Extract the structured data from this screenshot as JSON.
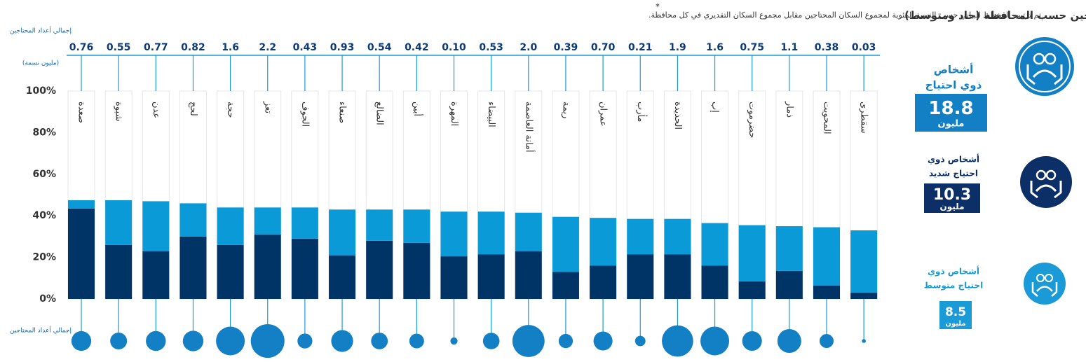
{
  "chart_data": {
    "type": "stacked_bar",
    "title": "أعداد المحتاجين حسب المحافظة (حاد ومتوسط)",
    "title_note": "*",
    "subtitle": "تم ترتيب المخطط البياني حسب النسبة المئوية لمجموع السكان المحتاجين مقابل مجموع السكان التقديري في كل محافظة.",
    "top_axis_label": "إجمالي أعداد المحتاجين",
    "top_axis_unit": "(مليون نسمة)",
    "bottom_axis_label": "إجمالي أعداد المحتاجين",
    "categories": [
      "صعدة",
      "شبوة",
      "عدن",
      "لحج",
      "حجة",
      "تعز",
      "الجوف",
      "صنعاء",
      "الضالع",
      "أبين",
      "المهرة",
      "البيضاء",
      "أمانة العاصمة",
      "ريمة",
      "عمران",
      "مأرب",
      "الحديدة",
      "إب",
      "حضرموت",
      "ذمار",
      "المحويت",
      "سقطرى"
    ],
    "series": [
      {
        "color": "#003366",
        "values": [
          43.5,
          26,
          23,
          30,
          26,
          31,
          29,
          21,
          28,
          27,
          20.5,
          21.5,
          23,
          13,
          16,
          21.5,
          21.5,
          16,
          8.5,
          13.5,
          6.5,
          3
        ]
      },
      {
        "color": "#0a9ad8",
        "values": [
          4,
          21.5,
          24,
          16,
          18,
          13,
          15,
          22,
          15,
          16,
          21.5,
          20.5,
          18.5,
          26.5,
          23,
          17,
          17,
          20.5,
          27,
          21.5,
          28,
          30
        ]
      }
    ],
    "totals": {
      "values": [
        0.76,
        0.55,
        0.77,
        0.82,
        1.6,
        2.2,
        0.43,
        0.93,
        0.54,
        0.42,
        0.1,
        0.53,
        2,
        0.39,
        0.7,
        0.21,
        1.9,
        1.6,
        0.75,
        1.1,
        0.38,
        0.03
      ],
      "value_labels": [
        "0.76",
        "0.55",
        "0.77",
        "0.82",
        "1.6",
        "2.2",
        "0.43",
        "0.93",
        "0.54",
        "0.42",
        "0.10",
        "0.53",
        "2.0",
        "0.39",
        "0.70",
        "0.21",
        "1.9",
        "1.6",
        "0.75",
        "1.1",
        "0.38",
        "0.03"
      ]
    },
    "ylim": [
      0,
      100
    ],
    "yticks": [
      {
        "value": 0,
        "label": "0%"
      },
      {
        "value": 20,
        "label": "20%"
      },
      {
        "value": 40,
        "label": "40%"
      },
      {
        "value": 60,
        "label": "60%"
      },
      {
        "value": 80,
        "label": "80%"
      },
      {
        "value": 100,
        "label": "100%"
      }
    ],
    "grid": false
  },
  "summary": [
    {
      "lines": [
        "أشخاص",
        "ذوي احتياج"
      ],
      "value": 18.8,
      "unit": "مليون"
    },
    {
      "lines": [
        "أشخاص ذوي",
        "احتياج شديد"
      ],
      "value": 10.3,
      "unit": "مليون"
    },
    {
      "lines": [
        "أشخاص ذوي",
        "احتياج متوسط"
      ],
      "value": 8.5,
      "unit": "مليون"
    }
  ]
}
